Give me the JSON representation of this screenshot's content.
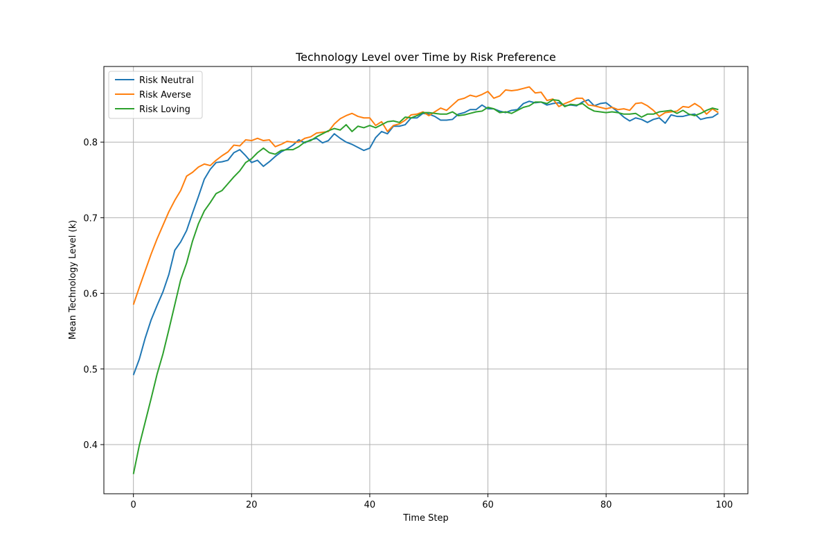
{
  "chart_data": {
    "type": "line",
    "title": "Technology Level over Time by Risk Preference",
    "xlabel": "Time Step",
    "ylabel": "Mean Technology Level (k)",
    "xlim": [
      -5,
      104
    ],
    "ylim": [
      0.335,
      0.9
    ],
    "xticks": [
      0,
      20,
      40,
      60,
      80,
      100
    ],
    "yticks": [
      0.4,
      0.5,
      0.6,
      0.7,
      0.8
    ],
    "grid": true,
    "legend_position": "upper-left",
    "colors": {
      "Risk Neutral": "#1f77b4",
      "Risk Averse": "#ff7f0e",
      "Risk Loving": "#2ca02c"
    },
    "x": [
      0,
      1,
      2,
      3,
      4,
      5,
      6,
      7,
      8,
      9,
      10,
      11,
      12,
      13,
      14,
      15,
      16,
      17,
      18,
      19,
      20,
      21,
      22,
      23,
      24,
      25,
      26,
      27,
      28,
      29,
      30,
      31,
      32,
      33,
      34,
      35,
      36,
      37,
      38,
      39,
      40,
      41,
      42,
      43,
      44,
      45,
      46,
      47,
      48,
      49,
      50,
      51,
      52,
      53,
      54,
      55,
      56,
      57,
      58,
      59,
      60,
      61,
      62,
      63,
      64,
      65,
      66,
      67,
      68,
      69,
      70,
      71,
      72,
      73,
      74,
      75,
      76,
      77,
      78,
      79,
      80,
      81,
      82,
      83,
      84,
      85,
      86,
      87,
      88,
      89,
      90,
      91,
      92,
      93,
      94,
      95,
      96,
      97,
      98,
      99
    ],
    "series": [
      {
        "name": "Risk Neutral",
        "values": [
          0.492,
          0.513,
          0.541,
          0.565,
          0.584,
          0.602,
          0.625,
          0.657,
          0.668,
          0.683,
          0.706,
          0.728,
          0.751,
          0.764,
          0.773,
          0.774,
          0.776,
          0.786,
          0.79,
          0.782,
          0.773,
          0.776,
          0.768,
          0.774,
          0.781,
          0.787,
          0.791,
          0.796,
          0.803,
          0.799,
          0.803,
          0.805,
          0.799,
          0.802,
          0.811,
          0.805,
          0.8,
          0.797,
          0.793,
          0.789,
          0.792,
          0.806,
          0.814,
          0.811,
          0.821,
          0.821,
          0.823,
          0.832,
          0.832,
          0.838,
          0.837,
          0.834,
          0.829,
          0.829,
          0.83,
          0.837,
          0.839,
          0.843,
          0.843,
          0.849,
          0.844,
          0.844,
          0.841,
          0.839,
          0.842,
          0.843,
          0.851,
          0.854,
          0.852,
          0.853,
          0.849,
          0.851,
          0.852,
          0.848,
          0.849,
          0.848,
          0.853,
          0.856,
          0.848,
          0.851,
          0.852,
          0.846,
          0.84,
          0.833,
          0.828,
          0.832,
          0.83,
          0.826,
          0.83,
          0.832,
          0.825,
          0.836,
          0.834,
          0.834,
          0.836,
          0.837,
          0.83,
          0.832,
          0.833,
          0.838
        ]
      },
      {
        "name": "Risk Averse",
        "values": [
          0.585,
          0.608,
          0.63,
          0.652,
          0.672,
          0.69,
          0.708,
          0.723,
          0.736,
          0.755,
          0.76,
          0.767,
          0.771,
          0.769,
          0.776,
          0.782,
          0.787,
          0.796,
          0.795,
          0.803,
          0.802,
          0.805,
          0.802,
          0.803,
          0.794,
          0.797,
          0.801,
          0.8,
          0.8,
          0.805,
          0.807,
          0.812,
          0.813,
          0.814,
          0.824,
          0.831,
          0.835,
          0.838,
          0.834,
          0.832,
          0.832,
          0.822,
          0.827,
          0.814,
          0.822,
          0.824,
          0.829,
          0.836,
          0.837,
          0.84,
          0.835,
          0.84,
          0.845,
          0.842,
          0.849,
          0.856,
          0.858,
          0.862,
          0.86,
          0.863,
          0.867,
          0.858,
          0.861,
          0.869,
          0.868,
          0.869,
          0.871,
          0.873,
          0.865,
          0.866,
          0.855,
          0.857,
          0.847,
          0.851,
          0.854,
          0.858,
          0.858,
          0.849,
          0.848,
          0.846,
          0.844,
          0.846,
          0.843,
          0.844,
          0.842,
          0.851,
          0.852,
          0.848,
          0.842,
          0.834,
          0.839,
          0.84,
          0.841,
          0.847,
          0.846,
          0.851,
          0.846,
          0.837,
          0.844,
          0.839
        ]
      },
      {
        "name": "Risk Loving",
        "values": [
          0.361,
          0.399,
          0.43,
          0.461,
          0.493,
          0.52,
          0.552,
          0.585,
          0.618,
          0.64,
          0.669,
          0.692,
          0.709,
          0.72,
          0.732,
          0.736,
          0.745,
          0.754,
          0.762,
          0.773,
          0.778,
          0.786,
          0.792,
          0.786,
          0.784,
          0.789,
          0.79,
          0.79,
          0.794,
          0.8,
          0.802,
          0.807,
          0.811,
          0.815,
          0.818,
          0.816,
          0.823,
          0.814,
          0.821,
          0.819,
          0.822,
          0.819,
          0.823,
          0.827,
          0.828,
          0.826,
          0.833,
          0.832,
          0.835,
          0.839,
          0.839,
          0.838,
          0.837,
          0.837,
          0.84,
          0.835,
          0.836,
          0.838,
          0.84,
          0.841,
          0.846,
          0.844,
          0.839,
          0.84,
          0.838,
          0.842,
          0.846,
          0.848,
          0.853,
          0.853,
          0.851,
          0.856,
          0.855,
          0.847,
          0.85,
          0.849,
          0.851,
          0.845,
          0.841,
          0.84,
          0.839,
          0.84,
          0.839,
          0.837,
          0.837,
          0.838,
          0.833,
          0.837,
          0.837,
          0.84,
          0.841,
          0.842,
          0.838,
          0.842,
          0.837,
          0.835,
          0.838,
          0.842,
          0.845,
          0.843
        ]
      }
    ]
  }
}
